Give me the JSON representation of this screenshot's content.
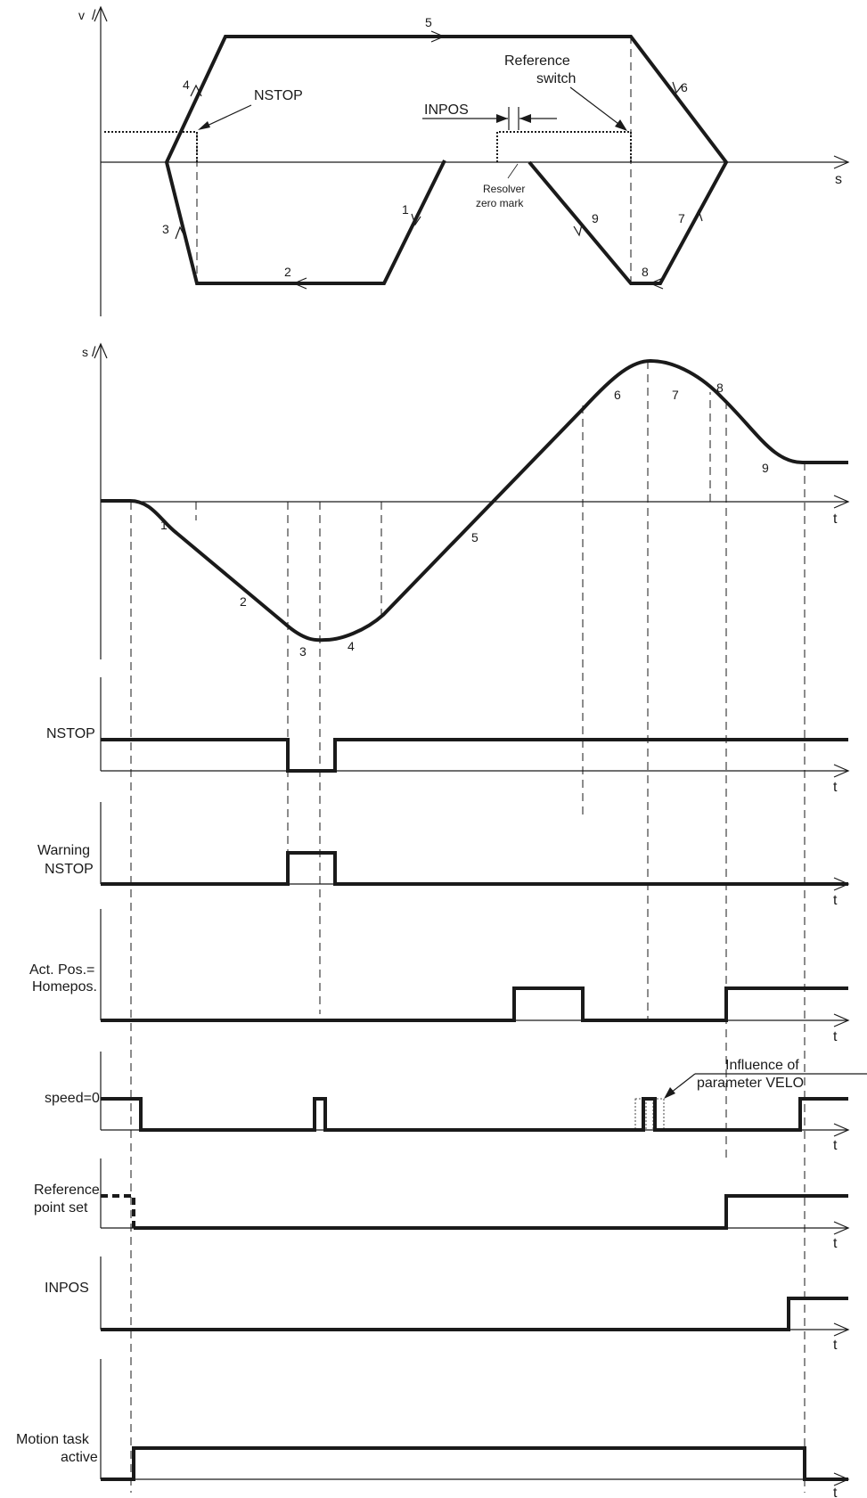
{
  "phase_plot": {
    "axis_v": "v",
    "axis_s": "s",
    "segments": [
      "1",
      "2",
      "3",
      "4",
      "5",
      "6",
      "7",
      "8",
      "9"
    ],
    "nstop_label": "NSTOP",
    "inpos_label": "INPOS",
    "reference_switch_line1": "Reference",
    "reference_switch_line2": "switch",
    "resolver_line1": "Resolver",
    "resolver_line2": "zero mark"
  },
  "position_plot": {
    "axis_s": "s",
    "axis_t": "t",
    "segments": [
      "1",
      "2",
      "3",
      "4",
      "5",
      "6",
      "7",
      "8",
      "9"
    ]
  },
  "signals": {
    "axis_t": "t",
    "nstop": {
      "line1": "NSTOP",
      "line2": ""
    },
    "warning": {
      "line1": "Warning",
      "line2": "NSTOP"
    },
    "actpos": {
      "line1": "Act. Pos.=",
      "line2": "Homepos."
    },
    "speed": {
      "line1": "speed=0",
      "line2": ""
    },
    "refpoint": {
      "line1": "Reference",
      "line2": "point set"
    },
    "inpos": {
      "line1": "INPOS",
      "line2": ""
    },
    "motion": {
      "line1": "Motion task",
      "line2": "active"
    }
  },
  "influence_note": {
    "line1": "Influence of",
    "line2": "parameter VELO"
  }
}
